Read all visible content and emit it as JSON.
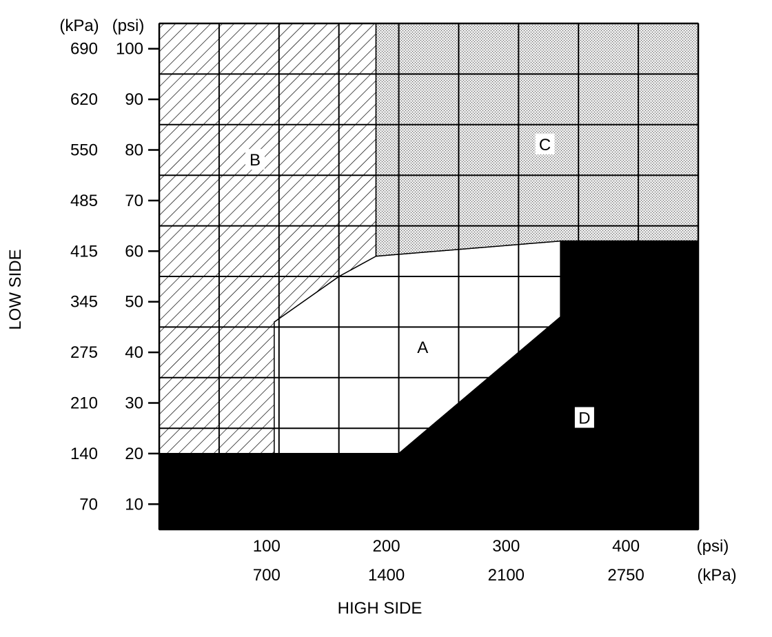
{
  "chart_data": {
    "type": "area",
    "title": "",
    "xlabel": "HIGH SIDE",
    "ylabel": "LOW SIDE",
    "x_units": [
      "(psi)",
      "(kPa)"
    ],
    "y_units": [
      "(kPa)",
      "(psi)"
    ],
    "x_ticks": [
      {
        "psi": 100,
        "psi_label": "100",
        "kpa_label": "700"
      },
      {
        "psi": 200,
        "psi_label": "200",
        "kpa_label": "1400"
      },
      {
        "psi": 300,
        "psi_label": "300",
        "kpa_label": "2100"
      },
      {
        "psi": 400,
        "psi_label": "400",
        "kpa_label": "2750"
      }
    ],
    "y_ticks": [
      {
        "psi": 100,
        "psi_label": "100",
        "kpa_label": "690"
      },
      {
        "psi": 90,
        "psi_label": "90",
        "kpa_label": "620"
      },
      {
        "psi": 80,
        "psi_label": "80",
        "kpa_label": "550"
      },
      {
        "psi": 70,
        "psi_label": "70",
        "kpa_label": "485"
      },
      {
        "psi": 60,
        "psi_label": "60",
        "kpa_label": "415"
      },
      {
        "psi": 50,
        "psi_label": "50",
        "kpa_label": "345"
      },
      {
        "psi": 40,
        "psi_label": "40",
        "kpa_label": "275"
      },
      {
        "psi": 30,
        "psi_label": "30",
        "kpa_label": "210"
      },
      {
        "psi": 20,
        "psi_label": "20",
        "kpa_label": "140"
      },
      {
        "psi": 10,
        "psi_label": "10",
        "kpa_label": "70"
      }
    ],
    "xlim": [
      0,
      450
    ],
    "ylim": [
      5,
      105
    ],
    "grid_x_step": 50,
    "grid_y_step": 10,
    "grid_y_offset": 5,
    "grid": true,
    "regions": [
      {
        "name": "A",
        "fill": "white",
        "label_at": [
          220,
          41
        ],
        "label_boxed": false,
        "polygon": [
          [
            96,
            20
          ],
          [
            200,
            20
          ],
          [
            335,
            47
          ],
          [
            335,
            62
          ],
          [
            181,
            59
          ],
          [
            150,
            55
          ],
          [
            96,
            46
          ]
        ]
      },
      {
        "name": "B",
        "fill": "hatch",
        "label_at": [
          80,
          78
        ],
        "label_boxed": true,
        "polygon": [
          [
            0,
            20
          ],
          [
            96,
            20
          ],
          [
            96,
            46
          ],
          [
            150,
            55
          ],
          [
            181,
            59
          ],
          [
            181,
            105
          ],
          [
            0,
            105
          ]
        ]
      },
      {
        "name": "C",
        "fill": "stipple",
        "label_at": [
          322,
          81
        ],
        "label_boxed": true,
        "polygon": [
          [
            181,
            59
          ],
          [
            335,
            62
          ],
          [
            450,
            62
          ],
          [
            450,
            105
          ],
          [
            181,
            105
          ]
        ]
      },
      {
        "name": "D",
        "fill": "black",
        "label_at": [
          355,
          27
        ],
        "label_boxed": true,
        "polygon": [
          [
            0,
            5
          ],
          [
            0,
            20
          ],
          [
            200,
            20
          ],
          [
            335,
            47
          ],
          [
            335,
            62
          ],
          [
            450,
            62
          ],
          [
            450,
            5
          ]
        ]
      }
    ]
  }
}
